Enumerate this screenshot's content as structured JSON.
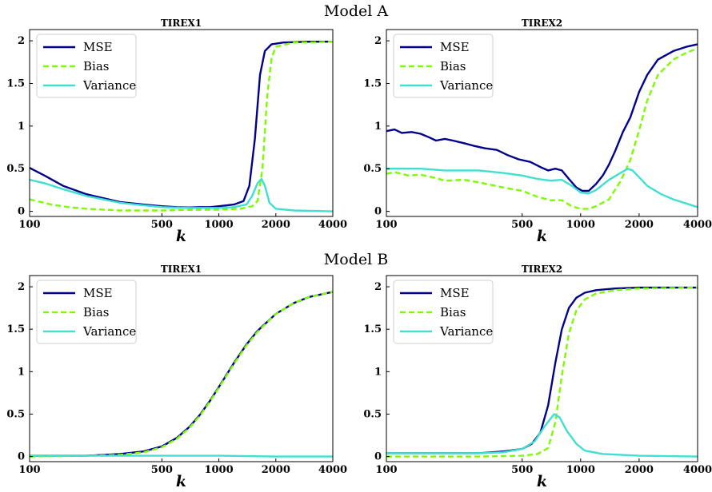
{
  "rows": [
    {
      "title": "Model A"
    },
    {
      "title": "Model B"
    }
  ],
  "chart_data": [
    {
      "type": "line",
      "row": "Model A",
      "title": "TIREX1",
      "xlabel": "k",
      "ylabel": "",
      "xscale": "log",
      "xlim": [
        100,
        4000
      ],
      "ylim": [
        0,
        2
      ],
      "xticks": [
        100,
        500,
        1000,
        2000,
        4000
      ],
      "yticks": [
        0,
        0.5,
        1,
        1.5,
        2
      ],
      "legend": "top-left",
      "series": [
        {
          "name": "MSE",
          "color": "#00008b",
          "style": "solid",
          "points": [
            [
              100,
              0.51
            ],
            [
              120,
              0.42
            ],
            [
              150,
              0.3
            ],
            [
              200,
              0.2
            ],
            [
              300,
              0.11
            ],
            [
              400,
              0.08
            ],
            [
              500,
              0.06
            ],
            [
              600,
              0.05
            ],
            [
              700,
              0.045
            ],
            [
              800,
              0.05
            ],
            [
              900,
              0.05
            ],
            [
              1000,
              0.06
            ],
            [
              1200,
              0.08
            ],
            [
              1350,
              0.12
            ],
            [
              1450,
              0.3
            ],
            [
              1550,
              0.85
            ],
            [
              1650,
              1.6
            ],
            [
              1750,
              1.88
            ],
            [
              1900,
              1.96
            ],
            [
              2200,
              1.98
            ],
            [
              3000,
              1.99
            ],
            [
              4000,
              1.99
            ]
          ]
        },
        {
          "name": "Bias",
          "color": "#7cfc00",
          "style": "dashed",
          "points": [
            [
              100,
              0.14
            ],
            [
              130,
              0.08
            ],
            [
              160,
              0.05
            ],
            [
              200,
              0.03
            ],
            [
              300,
              0.01
            ],
            [
              500,
              0.01
            ],
            [
              800,
              0.02
            ],
            [
              1000,
              0.02
            ],
            [
              1300,
              0.03
            ],
            [
              1500,
              0.06
            ],
            [
              1600,
              0.12
            ],
            [
              1700,
              0.5
            ],
            [
              1800,
              1.35
            ],
            [
              1900,
              1.8
            ],
            [
              2000,
              1.93
            ],
            [
              2500,
              1.98
            ],
            [
              3000,
              1.98
            ],
            [
              4000,
              1.99
            ]
          ]
        },
        {
          "name": "Variance",
          "color": "#40e0d0",
          "style": "solid",
          "points": [
            [
              100,
              0.37
            ],
            [
              120,
              0.33
            ],
            [
              150,
              0.26
            ],
            [
              200,
              0.18
            ],
            [
              300,
              0.1
            ],
            [
              400,
              0.07
            ],
            [
              500,
              0.05
            ],
            [
              700,
              0.04
            ],
            [
              1000,
              0.04
            ],
            [
              1200,
              0.05
            ],
            [
              1400,
              0.08
            ],
            [
              1500,
              0.18
            ],
            [
              1600,
              0.33
            ],
            [
              1680,
              0.38
            ],
            [
              1750,
              0.3
            ],
            [
              1850,
              0.1
            ],
            [
              2000,
              0.03
            ],
            [
              2500,
              0.01
            ],
            [
              4000,
              0.0
            ]
          ]
        }
      ]
    },
    {
      "type": "line",
      "row": "Model A",
      "title": "TIREX2",
      "xlabel": "k",
      "ylabel": "",
      "xscale": "log",
      "xlim": [
        100,
        4000
      ],
      "ylim": [
        0,
        2
      ],
      "xticks": [
        100,
        500,
        1000,
        2000,
        4000
      ],
      "yticks": [
        0,
        0.5,
        1,
        1.5,
        2
      ],
      "legend": "top-left",
      "series": [
        {
          "name": "MSE",
          "color": "#00008b",
          "style": "solid",
          "points": [
            [
              100,
              0.94
            ],
            [
              110,
              0.96
            ],
            [
              120,
              0.92
            ],
            [
              135,
              0.93
            ],
            [
              150,
              0.91
            ],
            [
              165,
              0.87
            ],
            [
              180,
              0.83
            ],
            [
              200,
              0.85
            ],
            [
              220,
              0.83
            ],
            [
              250,
              0.8
            ],
            [
              280,
              0.77
            ],
            [
              320,
              0.74
            ],
            [
              370,
              0.72
            ],
            [
              420,
              0.66
            ],
            [
              480,
              0.61
            ],
            [
              550,
              0.58
            ],
            [
              620,
              0.52
            ],
            [
              680,
              0.48
            ],
            [
              740,
              0.5
            ],
            [
              800,
              0.48
            ],
            [
              870,
              0.38
            ],
            [
              950,
              0.28
            ],
            [
              1020,
              0.24
            ],
            [
              1100,
              0.24
            ],
            [
              1200,
              0.32
            ],
            [
              1300,
              0.42
            ],
            [
              1400,
              0.55
            ],
            [
              1500,
              0.7
            ],
            [
              1650,
              0.93
            ],
            [
              1800,
              1.1
            ],
            [
              2000,
              1.4
            ],
            [
              2200,
              1.6
            ],
            [
              2500,
              1.78
            ],
            [
              3000,
              1.88
            ],
            [
              3500,
              1.93
            ],
            [
              4000,
              1.96
            ]
          ]
        },
        {
          "name": "Bias",
          "color": "#7cfc00",
          "style": "dashed",
          "points": [
            [
              100,
              0.44
            ],
            [
              110,
              0.46
            ],
            [
              130,
              0.42
            ],
            [
              150,
              0.43
            ],
            [
              180,
              0.39
            ],
            [
              200,
              0.36
            ],
            [
              250,
              0.37
            ],
            [
              300,
              0.34
            ],
            [
              400,
              0.28
            ],
            [
              500,
              0.24
            ],
            [
              600,
              0.17
            ],
            [
              700,
              0.13
            ],
            [
              800,
              0.13
            ],
            [
              900,
              0.06
            ],
            [
              1000,
              0.03
            ],
            [
              1100,
              0.03
            ],
            [
              1200,
              0.06
            ],
            [
              1400,
              0.14
            ],
            [
              1600,
              0.35
            ],
            [
              1800,
              0.6
            ],
            [
              2000,
              0.95
            ],
            [
              2200,
              1.3
            ],
            [
              2500,
              1.6
            ],
            [
              3000,
              1.78
            ],
            [
              3500,
              1.86
            ],
            [
              4000,
              1.91
            ]
          ]
        },
        {
          "name": "Variance",
          "color": "#40e0d0",
          "style": "solid",
          "points": [
            [
              100,
              0.5
            ],
            [
              150,
              0.5
            ],
            [
              200,
              0.48
            ],
            [
              300,
              0.48
            ],
            [
              400,
              0.45
            ],
            [
              500,
              0.42
            ],
            [
              600,
              0.38
            ],
            [
              700,
              0.36
            ],
            [
              800,
              0.37
            ],
            [
              900,
              0.3
            ],
            [
              1000,
              0.22
            ],
            [
              1100,
              0.21
            ],
            [
              1200,
              0.25
            ],
            [
              1400,
              0.37
            ],
            [
              1600,
              0.45
            ],
            [
              1750,
              0.5
            ],
            [
              1850,
              0.48
            ],
            [
              2000,
              0.4
            ],
            [
              2200,
              0.3
            ],
            [
              2600,
              0.2
            ],
            [
              3000,
              0.14
            ],
            [
              4000,
              0.05
            ]
          ]
        }
      ]
    },
    {
      "type": "line",
      "row": "Model B",
      "title": "TIREX1",
      "xlabel": "k",
      "ylabel": "",
      "xscale": "log",
      "xlim": [
        100,
        4000
      ],
      "ylim": [
        0,
        2
      ],
      "xticks": [
        100,
        500,
        1000,
        2000,
        4000
      ],
      "yticks": [
        0,
        0.5,
        1,
        1.5,
        2
      ],
      "legend": "top-left",
      "series": [
        {
          "name": "MSE",
          "color": "#00008b",
          "style": "solid",
          "points": [
            [
              100,
              0.01
            ],
            [
              200,
              0.01
            ],
            [
              300,
              0.03
            ],
            [
              400,
              0.06
            ],
            [
              500,
              0.12
            ],
            [
              600,
              0.22
            ],
            [
              700,
              0.35
            ],
            [
              800,
              0.5
            ],
            [
              900,
              0.66
            ],
            [
              1000,
              0.82
            ],
            [
              1200,
              1.1
            ],
            [
              1400,
              1.32
            ],
            [
              1600,
              1.48
            ],
            [
              2000,
              1.68
            ],
            [
              2500,
              1.81
            ],
            [
              3000,
              1.88
            ],
            [
              4000,
              1.94
            ]
          ]
        },
        {
          "name": "Bias",
          "color": "#7cfc00",
          "style": "dashed",
          "points": [
            [
              100,
              0.0
            ],
            [
              200,
              0.01
            ],
            [
              300,
              0.02
            ],
            [
              400,
              0.05
            ],
            [
              500,
              0.11
            ],
            [
              600,
              0.21
            ],
            [
              700,
              0.34
            ],
            [
              800,
              0.49
            ],
            [
              900,
              0.65
            ],
            [
              1000,
              0.81
            ],
            [
              1200,
              1.09
            ],
            [
              1400,
              1.31
            ],
            [
              1600,
              1.47
            ],
            [
              2000,
              1.68
            ],
            [
              2500,
              1.81
            ],
            [
              3000,
              1.88
            ],
            [
              4000,
              1.94
            ]
          ]
        },
        {
          "name": "Variance",
          "color": "#40e0d0",
          "style": "solid",
          "points": [
            [
              100,
              0.01
            ],
            [
              300,
              0.01
            ],
            [
              600,
              0.01
            ],
            [
              1000,
              0.01
            ],
            [
              2000,
              0.0
            ],
            [
              4000,
              0.0
            ]
          ]
        }
      ]
    },
    {
      "type": "line",
      "row": "Model B",
      "title": "TIREX2",
      "xlabel": "k",
      "ylabel": "",
      "xscale": "log",
      "xlim": [
        100,
        4000
      ],
      "ylim": [
        0,
        2
      ],
      "xticks": [
        100,
        500,
        1000,
        2000,
        4000
      ],
      "yticks": [
        0,
        0.5,
        1,
        1.5,
        2
      ],
      "legend": "top-left",
      "series": [
        {
          "name": "MSE",
          "color": "#00008b",
          "style": "solid",
          "points": [
            [
              100,
              0.04
            ],
            [
              200,
              0.04
            ],
            [
              300,
              0.04
            ],
            [
              400,
              0.06
            ],
            [
              500,
              0.09
            ],
            [
              560,
              0.15
            ],
            [
              620,
              0.28
            ],
            [
              680,
              0.6
            ],
            [
              740,
              1.1
            ],
            [
              800,
              1.5
            ],
            [
              870,
              1.75
            ],
            [
              950,
              1.87
            ],
            [
              1050,
              1.93
            ],
            [
              1200,
              1.96
            ],
            [
              1500,
              1.98
            ],
            [
              2000,
              1.99
            ],
            [
              4000,
              1.99
            ]
          ]
        },
        {
          "name": "Bias",
          "color": "#7cfc00",
          "style": "dashed",
          "points": [
            [
              100,
              0.0
            ],
            [
              300,
              0.0
            ],
            [
              500,
              0.01
            ],
            [
              600,
              0.03
            ],
            [
              680,
              0.1
            ],
            [
              740,
              0.4
            ],
            [
              800,
              0.95
            ],
            [
              870,
              1.45
            ],
            [
              950,
              1.72
            ],
            [
              1050,
              1.85
            ],
            [
              1200,
              1.92
            ],
            [
              1500,
              1.96
            ],
            [
              2000,
              1.98
            ],
            [
              4000,
              1.99
            ]
          ]
        },
        {
          "name": "Variance",
          "color": "#40e0d0",
          "style": "solid",
          "points": [
            [
              100,
              0.04
            ],
            [
              200,
              0.04
            ],
            [
              300,
              0.04
            ],
            [
              400,
              0.05
            ],
            [
              500,
              0.09
            ],
            [
              580,
              0.18
            ],
            [
              650,
              0.35
            ],
            [
              730,
              0.5
            ],
            [
              780,
              0.46
            ],
            [
              850,
              0.3
            ],
            [
              950,
              0.15
            ],
            [
              1050,
              0.07
            ],
            [
              1300,
              0.03
            ],
            [
              2000,
              0.01
            ],
            [
              4000,
              0.0
            ]
          ]
        }
      ]
    }
  ]
}
